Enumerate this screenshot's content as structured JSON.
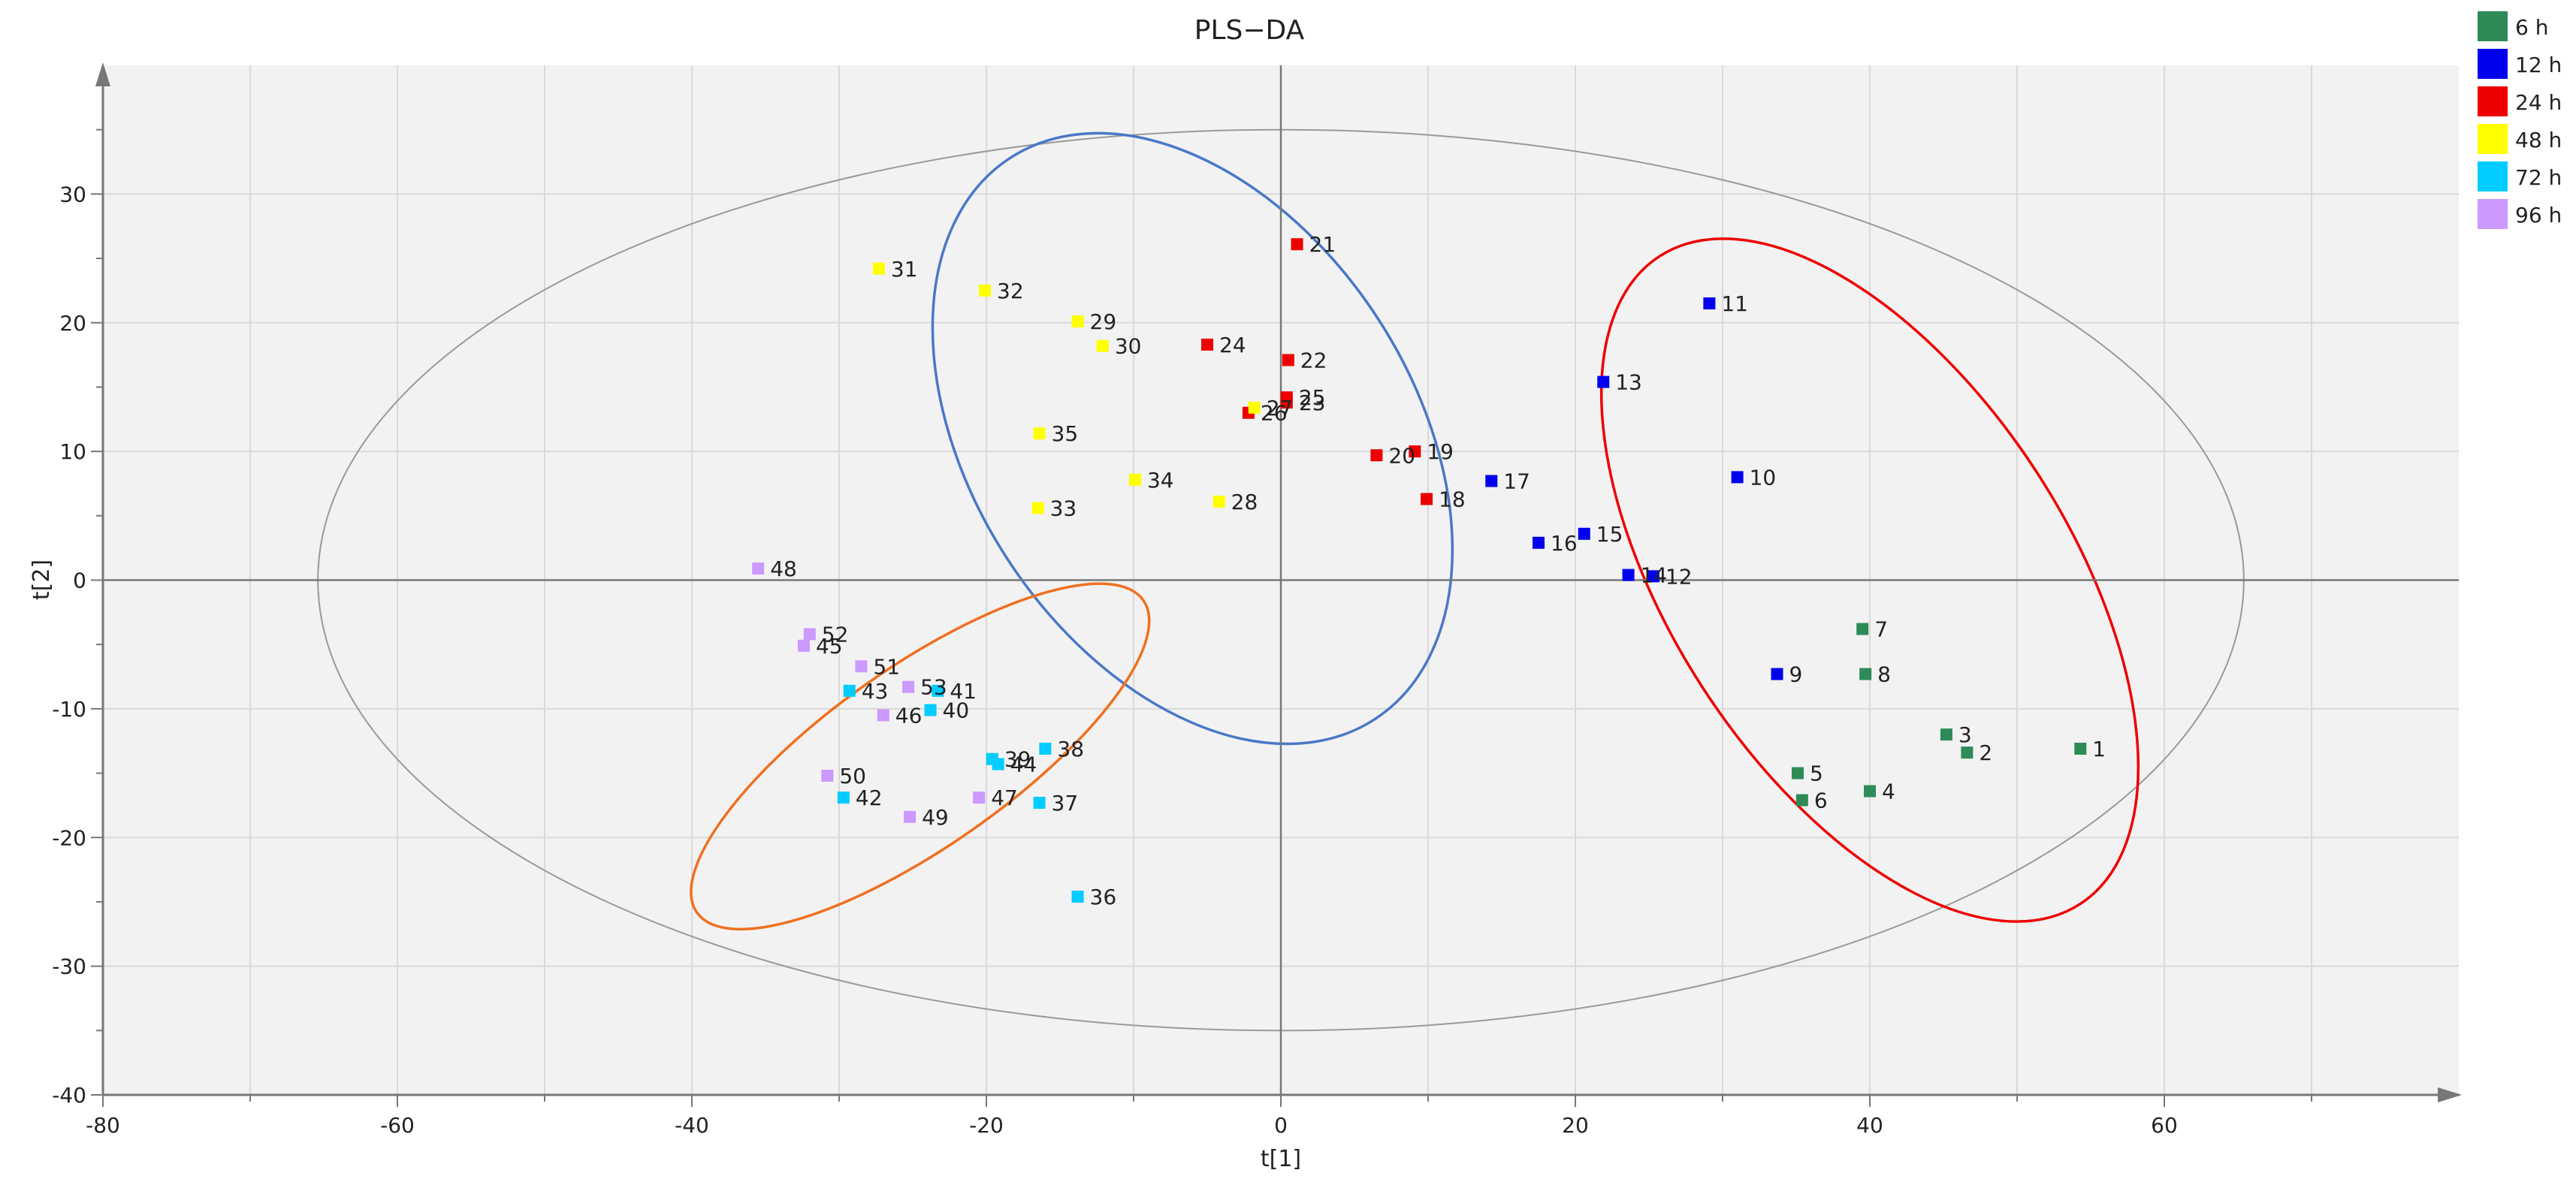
{
  "chart_data": {
    "type": "scatter",
    "title": "PLS−DA",
    "xlabel": "t[1]",
    "ylabel": "t[2]",
    "xlim": [
      -80,
      80
    ],
    "ylim": [
      -40,
      40
    ],
    "xticks": [
      "-80",
      "-60",
      "-40",
      "-20",
      "0",
      "20",
      "40",
      "60"
    ],
    "xtick_values": [
      -80,
      -60,
      -40,
      -20,
      0,
      20,
      40,
      60
    ],
    "yticks": [
      "30",
      "20",
      "10",
      "0",
      "-10",
      "-20",
      "-30",
      "-40"
    ],
    "ytick_values": [
      30,
      20,
      10,
      0,
      -10,
      -20,
      -30,
      -40
    ],
    "grid": true,
    "legend_position": "top-right",
    "series": [
      {
        "name": "6 h",
        "color": "#2e8b57",
        "points": [
          {
            "label": "1",
            "x": 54.3,
            "y": -13.1
          },
          {
            "label": "2",
            "x": 46.6,
            "y": -13.4
          },
          {
            "label": "3",
            "x": 45.2,
            "y": -12.0
          },
          {
            "label": "4",
            "x": 40.0,
            "y": -16.4
          },
          {
            "label": "5",
            "x": 35.1,
            "y": -15.0
          },
          {
            "label": "6",
            "x": 35.4,
            "y": -17.1
          },
          {
            "label": "7",
            "x": 39.5,
            "y": -3.8
          },
          {
            "label": "8",
            "x": 39.7,
            "y": -7.3
          }
        ]
      },
      {
        "name": "12 h",
        "color": "#0000ee",
        "points": [
          {
            "label": "9",
            "x": 33.7,
            "y": -7.3
          },
          {
            "label": "10",
            "x": 31.0,
            "y": 8.0
          },
          {
            "label": "11",
            "x": 29.1,
            "y": 21.5
          },
          {
            "label": "12",
            "x": 25.3,
            "y": 0.3
          },
          {
            "label": "13",
            "x": 21.9,
            "y": 15.4
          },
          {
            "label": "14",
            "x": 23.6,
            "y": 0.4
          },
          {
            "label": "15",
            "x": 20.6,
            "y": 3.6
          },
          {
            "label": "16",
            "x": 17.5,
            "y": 2.9
          },
          {
            "label": "17",
            "x": 14.3,
            "y": 7.7
          }
        ]
      },
      {
        "name": "24 h",
        "color": "#ee0000",
        "points": [
          {
            "label": "18",
            "x": 9.9,
            "y": 6.3
          },
          {
            "label": "19",
            "x": 9.1,
            "y": 10.0
          },
          {
            "label": "20",
            "x": 6.5,
            "y": 9.7
          },
          {
            "label": "21",
            "x": 1.1,
            "y": 26.1
          },
          {
            "label": "22",
            "x": 0.5,
            "y": 17.1
          },
          {
            "label": "23",
            "x": 0.4,
            "y": 13.8
          },
          {
            "label": "24",
            "x": -5.0,
            "y": 18.3
          },
          {
            "label": "25",
            "x": 0.4,
            "y": 14.2
          },
          {
            "label": "26",
            "x": -2.2,
            "y": 13.0
          }
        ]
      },
      {
        "name": "48 h",
        "color": "#ffff00",
        "points": [
          {
            "label": "27",
            "x": -1.8,
            "y": 13.4
          },
          {
            "label": "28",
            "x": -4.2,
            "y": 6.1
          },
          {
            "label": "29",
            "x": -13.8,
            "y": 20.1
          },
          {
            "label": "30",
            "x": -12.1,
            "y": 18.2
          },
          {
            "label": "31",
            "x": -27.3,
            "y": 24.2
          },
          {
            "label": "32",
            "x": -20.1,
            "y": 22.5
          },
          {
            "label": "33",
            "x": -16.5,
            "y": 5.6
          },
          {
            "label": "34",
            "x": -9.9,
            "y": 7.8
          },
          {
            "label": "35",
            "x": -16.4,
            "y": 11.4
          }
        ]
      },
      {
        "name": "72 h",
        "color": "#00ccff",
        "points": [
          {
            "label": "36",
            "x": -13.8,
            "y": -24.6
          },
          {
            "label": "37",
            "x": -16.4,
            "y": -17.3
          },
          {
            "label": "38",
            "x": -16.0,
            "y": -13.1
          },
          {
            "label": "39",
            "x": -19.6,
            "y": -13.9
          },
          {
            "label": "40",
            "x": -23.8,
            "y": -10.1
          },
          {
            "label": "41",
            "x": -23.3,
            "y": -8.6
          },
          {
            "label": "42",
            "x": -29.7,
            "y": -16.9
          },
          {
            "label": "43",
            "x": -29.3,
            "y": -8.6
          },
          {
            "label": "44",
            "x": -19.2,
            "y": -14.3
          }
        ]
      },
      {
        "name": "96 h",
        "color": "#cc99ff",
        "points": [
          {
            "label": "45",
            "x": -32.4,
            "y": -5.1
          },
          {
            "label": "46",
            "x": -27.0,
            "y": -10.5
          },
          {
            "label": "47",
            "x": -20.5,
            "y": -16.9
          },
          {
            "label": "48",
            "x": -35.5,
            "y": 0.9
          },
          {
            "label": "49",
            "x": -25.2,
            "y": -18.4
          },
          {
            "label": "50",
            "x": -30.8,
            "y": -15.2
          },
          {
            "label": "51",
            "x": -28.5,
            "y": -6.7
          },
          {
            "label": "52",
            "x": -32.0,
            "y": -4.2
          },
          {
            "label": "53",
            "x": -25.3,
            "y": -8.3
          }
        ]
      }
    ],
    "ellipses": [
      {
        "name": "hotelling-t2-ellipse",
        "color": "#999999",
        "cx": 0,
        "cy": 0,
        "rx": 65.4,
        "ry": 35.0,
        "angle": 0
      },
      {
        "name": "blue-group-ellipse",
        "color": "#4a78c8",
        "cx": -6.0,
        "cy": 11.0,
        "rx": 15.0,
        "ry": 26.0,
        "angle": 33
      },
      {
        "name": "red-group-ellipse",
        "color": "#ee0000",
        "cx": 40.0,
        "cy": 0.0,
        "rx": 13.5,
        "ry": 30.0,
        "angle": 33
      },
      {
        "name": "orange-group-ellipse",
        "color": "#f07020",
        "cx": -24.5,
        "cy": -13.7,
        "rx": 18.5,
        "ry": 7.0,
        "angle": 35
      }
    ]
  }
}
